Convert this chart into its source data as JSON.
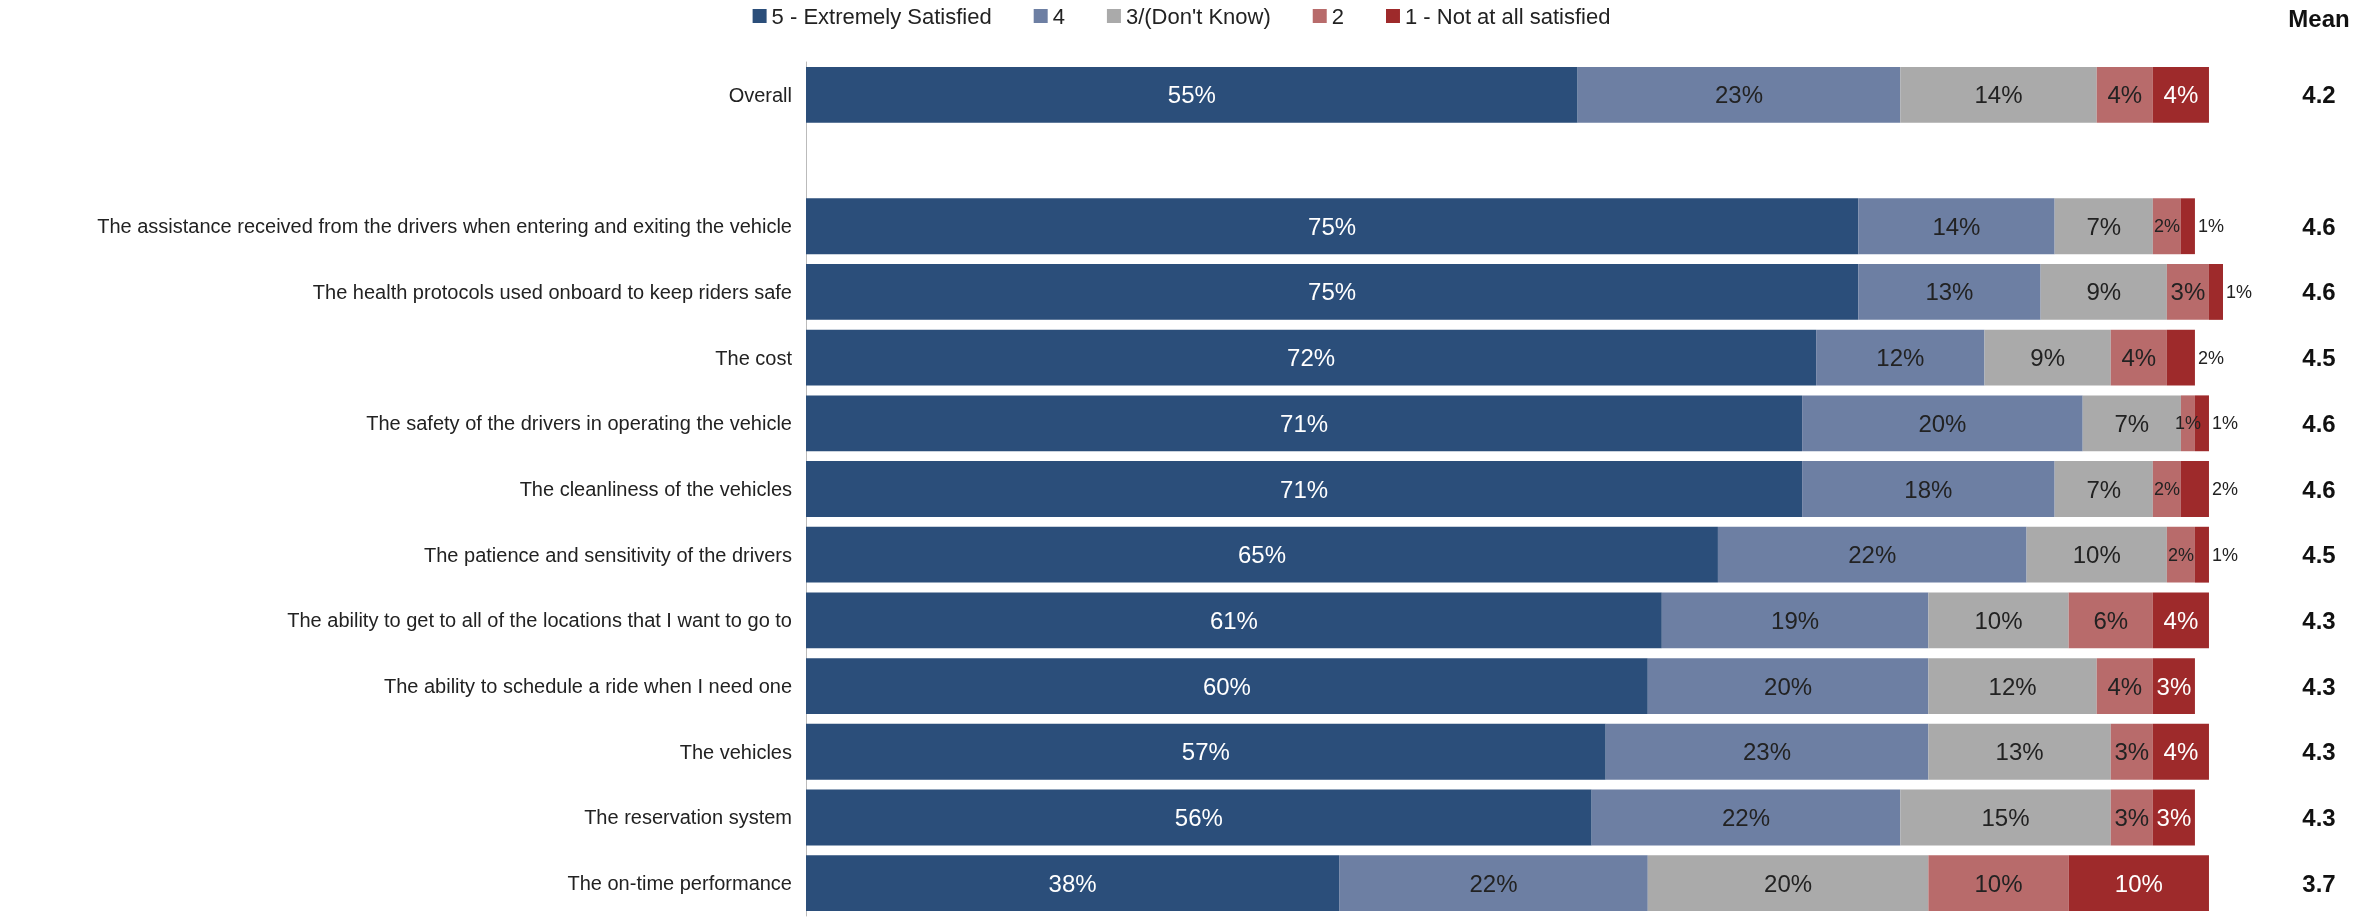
{
  "chart_data": {
    "type": "bar",
    "orientation": "horizontal",
    "stacked": true,
    "legend": "top",
    "tick_labels": "y",
    "xlim": [
      0,
      101
    ],
    "categories": [
      "Overall",
      null,
      "The assistance received from the drivers when entering and exiting the vehicle",
      "The health protocols used onboard to keep riders safe",
      "The cost",
      "The safety of the drivers in operating the vehicle",
      "The cleanliness of the vehicles",
      "The patience and sensitivity of the drivers",
      "The ability to get to all of the locations that I want to go to",
      "The ability to schedule a ride when I need one",
      "The vehicles",
      "The reservation system",
      "The on-time performance"
    ],
    "series": [
      {
        "name": "5 - Extremely Satisfied",
        "color": "#2b4e7a",
        "values": [
          55,
          null,
          75,
          75,
          72,
          71,
          71,
          65,
          61,
          60,
          57,
          56,
          38
        ],
        "value_labels": [
          "55%",
          null,
          "75%",
          "75%",
          "72%",
          "71%",
          "71%",
          "65%",
          "61%",
          "60%",
          "57%",
          "56%",
          "38%"
        ]
      },
      {
        "name": "4",
        "color": "#6d7fa3",
        "values": [
          23,
          null,
          14,
          13,
          12,
          20,
          18,
          22,
          19,
          20,
          23,
          22,
          22
        ],
        "value_labels": [
          "23%",
          null,
          "14%",
          "13%",
          "12%",
          "20%",
          "18%",
          "22%",
          "19%",
          "20%",
          "23%",
          "22%",
          "22%"
        ]
      },
      {
        "name": "3/(Don't Know)",
        "color": "#aaaaaa",
        "values": [
          14,
          null,
          7,
          9,
          9,
          7,
          7,
          10,
          10,
          12,
          13,
          15,
          20
        ],
        "value_labels": [
          "14%",
          null,
          "7%",
          "9%",
          "9%",
          "7%",
          "7%",
          "10%",
          "10%",
          "12%",
          "13%",
          "15%",
          "20%"
        ]
      },
      {
        "name": "2",
        "color": "#b86b6b",
        "values": [
          4,
          null,
          2,
          3,
          4,
          1,
          2,
          2,
          6,
          4,
          3,
          3,
          10
        ],
        "value_labels": [
          "4%",
          null,
          "2%",
          "3%",
          "4%",
          "1%",
          "2%",
          "2%",
          "6%",
          "4%",
          "3%",
          "3%",
          "10%"
        ]
      },
      {
        "name": "1 - Not at all satisfied",
        "color": "#9e2a2b",
        "values": [
          4,
          null,
          1,
          1,
          2,
          1,
          2,
          1,
          4,
          3,
          4,
          3,
          10
        ],
        "value_labels": [
          "4%",
          null,
          "1%",
          "1%",
          "2%",
          "1%",
          "2%",
          "1%",
          "4%",
          "3%",
          "4%",
          "3%",
          "10%"
        ]
      }
    ],
    "annotations": [
      "Mean",
      "4.2",
      "4.6",
      "4.6",
      "4.5",
      "4.6",
      "4.6",
      "4.5",
      "4.3",
      "4.3",
      "4.3",
      "4.3",
      "3.7"
    ]
  }
}
